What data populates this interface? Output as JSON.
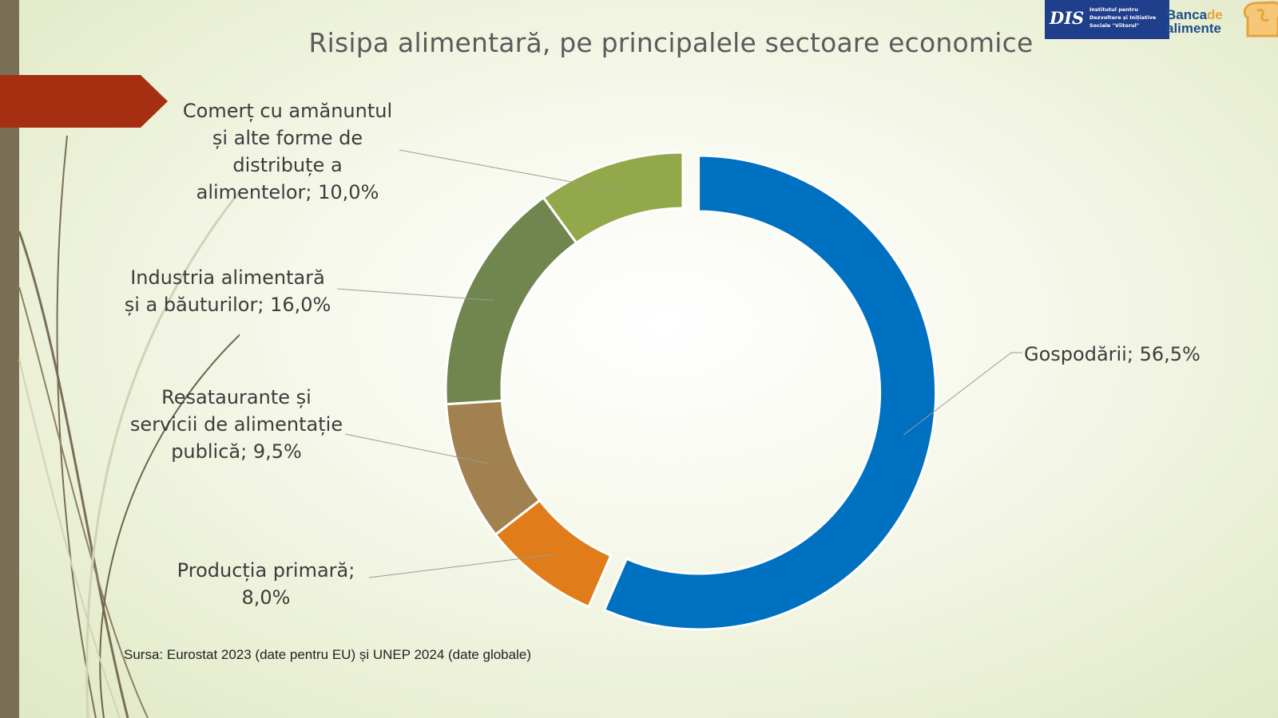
{
  "title": "Risipa alimentară, pe principalele sectoare economice",
  "source": "Sursa: Eurostat 2023  (date pentru EU) și  UNEP 2024 (date globale)",
  "logos": {
    "dis_text": "DIS",
    "dis_org": "Institutul pentru Dezvoltare și Inițiative Sociale \"Viitorul\"",
    "banca_a": "Banca",
    "banca_de": "de",
    "banca_b": "alimente"
  },
  "colors": {
    "sidebar": "#7a6f55",
    "banner": "#a62f12"
  },
  "chart_data": {
    "type": "pie",
    "variant": "donut",
    "title": "Risipa alimentară, pe principalele sectoare economice",
    "categories": [
      "Gospodării",
      "Producția primară",
      "Resataurante și servicii de alimentație publică",
      "Industria alimentară și a băuturilor",
      "Comerț cu amănuntul și alte forme de distribuțe a alimentelor"
    ],
    "values": [
      56.5,
      8.0,
      9.5,
      16.0,
      10.0
    ],
    "colors": [
      "#0070c0",
      "#e07d1a",
      "#a0814f",
      "#71854f",
      "#93a84a"
    ],
    "labels": [
      "Gospodării; 56,5%",
      "Producția primară; 8,0%",
      "Resataurante și servicii de alimentație publică; 9,5%",
      "Industria alimentară și a băuturilor; 16,0%",
      "Comerț cu amănuntul și alte forme de distribuțe a alimentelor; 10,0%"
    ],
    "exploded": "Gospodării"
  }
}
